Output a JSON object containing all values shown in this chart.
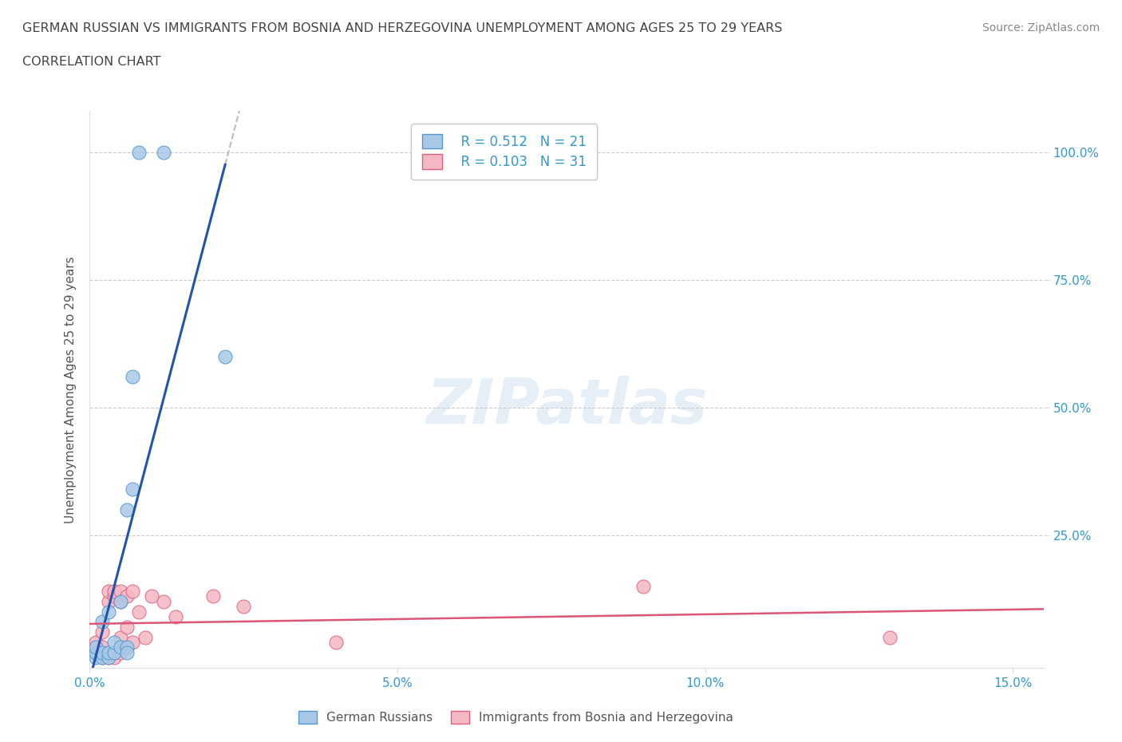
{
  "title_line1": "GERMAN RUSSIAN VS IMMIGRANTS FROM BOSNIA AND HERZEGOVINA UNEMPLOYMENT AMONG AGES 25 TO 29 YEARS",
  "title_line2": "CORRELATION CHART",
  "source_text": "Source: ZipAtlas.com",
  "ylabel": "Unemployment Among Ages 25 to 29 years",
  "xlim": [
    0.0,
    0.155
  ],
  "ylim": [
    -0.01,
    1.08
  ],
  "xtick_vals": [
    0.0,
    0.05,
    0.1,
    0.15
  ],
  "xtick_labels": [
    "0.0%",
    "5.0%",
    "10.0%",
    "15.0%"
  ],
  "ytick_vals": [
    0.25,
    0.5,
    0.75,
    1.0
  ],
  "ytick_labels": [
    "25.0%",
    "50.0%",
    "75.0%",
    "100.0%"
  ],
  "grid_color": "#cccccc",
  "background_color": "#ffffff",
  "legend_r1": "R = 0.512",
  "legend_n1": "N = 21",
  "legend_r2": "R = 0.103",
  "legend_n2": "N = 31",
  "color_blue_fill": "#a8c8e8",
  "color_blue_edge": "#5599cc",
  "color_pink_fill": "#f4b8c4",
  "color_pink_edge": "#e06080",
  "color_blue_line": "#2255aa",
  "color_pink_line": "#dd5577",
  "color_dash": "#bbbbbb",
  "german_russian_x": [
    0.001,
    0.001,
    0.001,
    0.002,
    0.002,
    0.002,
    0.003,
    0.003,
    0.003,
    0.004,
    0.004,
    0.005,
    0.005,
    0.006,
    0.006,
    0.006,
    0.007,
    0.007,
    0.008,
    0.012,
    0.022
  ],
  "german_russian_y": [
    0.01,
    0.02,
    0.03,
    0.01,
    0.02,
    0.08,
    0.01,
    0.02,
    0.1,
    0.02,
    0.04,
    0.03,
    0.12,
    0.03,
    0.02,
    0.3,
    0.56,
    0.34,
    1.0,
    1.0,
    0.6
  ],
  "bosnia_x": [
    0.001,
    0.001,
    0.001,
    0.002,
    0.002,
    0.002,
    0.003,
    0.003,
    0.003,
    0.003,
    0.004,
    0.004,
    0.004,
    0.005,
    0.005,
    0.005,
    0.005,
    0.006,
    0.006,
    0.007,
    0.007,
    0.008,
    0.009,
    0.01,
    0.012,
    0.014,
    0.02,
    0.025,
    0.04,
    0.09,
    0.13
  ],
  "bosnia_y": [
    0.02,
    0.03,
    0.04,
    0.01,
    0.03,
    0.06,
    0.01,
    0.02,
    0.12,
    0.14,
    0.01,
    0.13,
    0.14,
    0.05,
    0.02,
    0.12,
    0.14,
    0.07,
    0.13,
    0.14,
    0.04,
    0.1,
    0.05,
    0.13,
    0.12,
    0.09,
    0.13,
    0.11,
    0.04,
    0.15,
    0.05
  ]
}
